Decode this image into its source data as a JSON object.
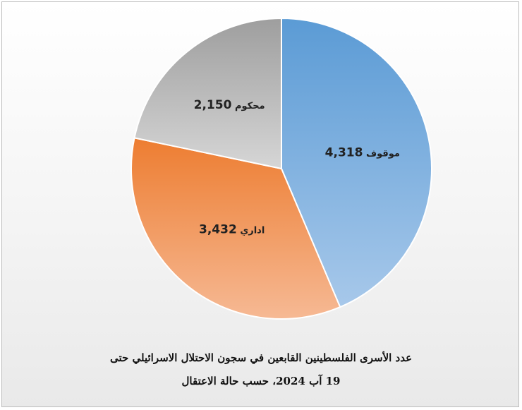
{
  "chart_data": {
    "type": "pie",
    "slices": [
      {
        "value": 4318,
        "value_label": "4,318",
        "name": "موقوف",
        "color_start": "#5b9bd5",
        "color_end": "#a7c8ea"
      },
      {
        "value": 3432,
        "value_label": "3,432",
        "name": "اداري",
        "color_start": "#ed7d31",
        "color_end": "#f6b994"
      },
      {
        "value": 2150,
        "value_label": "2,150",
        "name": "محكوم",
        "color_start": "#9e9e9e",
        "color_end": "#d6d6d6"
      }
    ],
    "start_angle_deg": 0,
    "direction": "clockwise"
  },
  "caption": {
    "line1": "عدد الأسرى الفلسطينين القابعين في سجون الاحتلال الاسرائيلي حتى",
    "line2": "19 آب 2024، حسب حالة الاعتقال"
  }
}
